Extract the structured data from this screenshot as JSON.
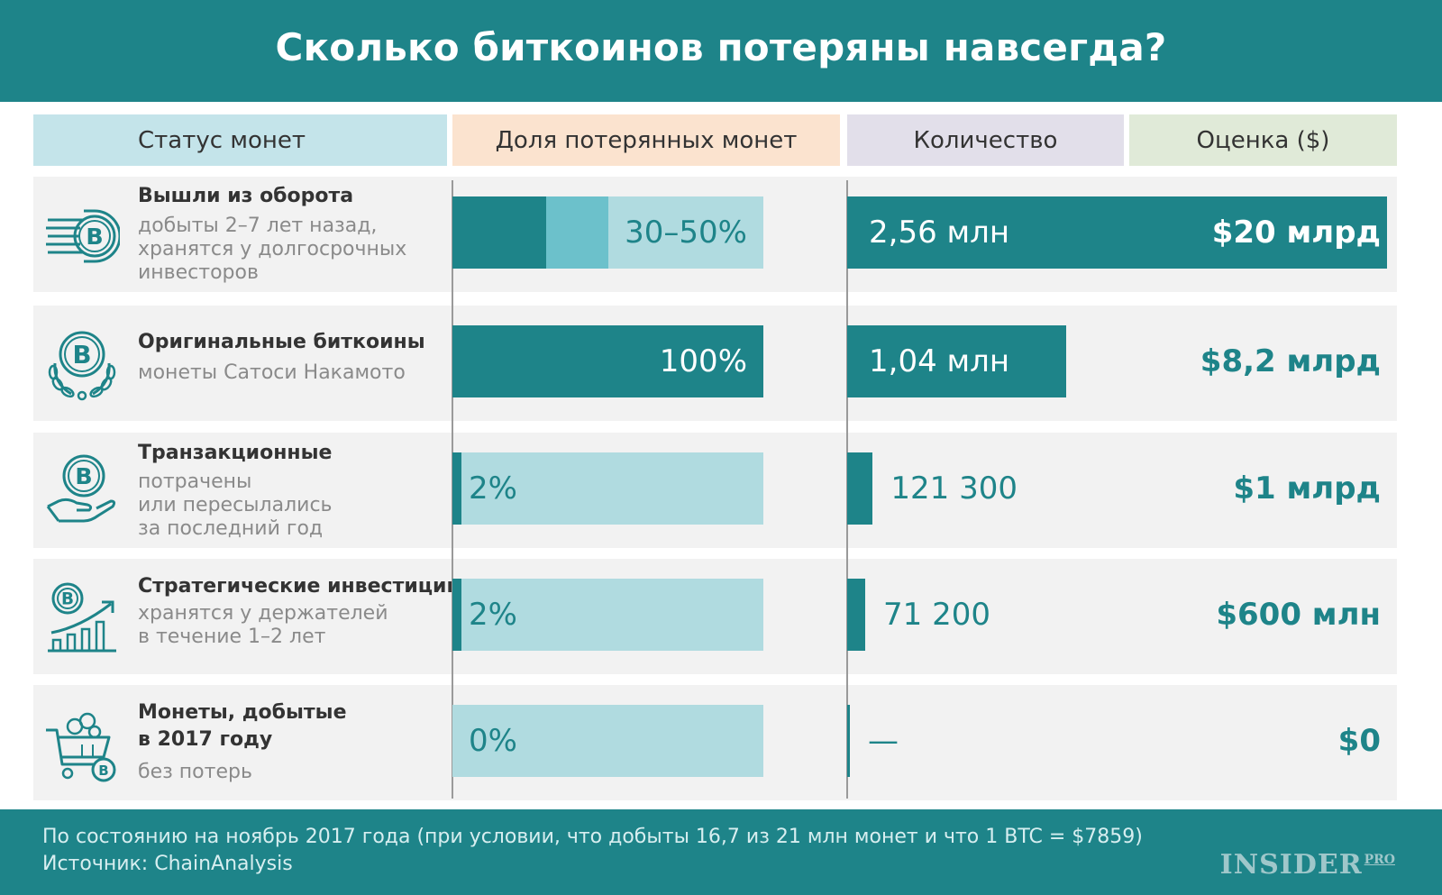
{
  "title": "Сколько биткоинов потеряны навсегда?",
  "columns": {
    "status": "Статус монет",
    "share": "Доля потерянных монет",
    "count": "Количество",
    "value": "Оценка ($)"
  },
  "colors": {
    "teal": "#1e8489",
    "teal_mid": "#6cc1cb",
    "teal_light": "#b0dbe0",
    "row_bg": "#f2f2f2"
  },
  "chart_data": {
    "type": "bar",
    "categories": [
      "Вышли из оборота",
      "Оригинальные биткоины",
      "Транзакционные",
      "Стратегические инвестиции",
      "Монеты, добытые в 2017 году"
    ],
    "rows": [
      {
        "icon": "bitcoin-speed-icon",
        "title": "Вышли из оборота",
        "subtitle": "добыты 2–7 лет назад,\nхранятся у долгосрочных\nинвесторов",
        "share_label": "30–50%",
        "share_low": 30,
        "share_high": 50,
        "count_label": "2,56 млн",
        "count": 2560000,
        "value_label": "$20 млрд"
      },
      {
        "icon": "bitcoin-laurel-icon",
        "title": "Оригинальные биткоины",
        "subtitle": "монеты Сатоси Накамото",
        "share_label": "100%",
        "share_low": 100,
        "share_high": 100,
        "count_label": "1,04 млн",
        "count": 1040000,
        "value_label": "$8,2 млрд"
      },
      {
        "icon": "bitcoin-hand-icon",
        "title": "Транзакционные",
        "subtitle": "потрачены\nили пересылались\nза последний год",
        "share_label": "2%",
        "share_low": 2,
        "share_high": 2,
        "count_label": "121 300",
        "count": 121300,
        "value_label": "$1 млрд"
      },
      {
        "icon": "bitcoin-growth-chart-icon",
        "title": "Стратегические инвестиции",
        "subtitle": "хранятся у держателей\nв течение 1–2 лет",
        "share_label": "2%",
        "share_low": 2,
        "share_high": 2,
        "count_label": "71 200",
        "count": 71200,
        "value_label": "$600 млн"
      },
      {
        "icon": "bitcoin-mining-cart-icon",
        "title": "Монеты, добытые\nв 2017 году",
        "subtitle": "без потерь",
        "share_label": "0%",
        "share_low": 0,
        "share_high": 0,
        "count_label": "—",
        "count": 0,
        "value_label": "$0"
      }
    ]
  },
  "footer": {
    "note": "По состоянию на ноябрь 2017 года (при условии, что добыты 16,7 из 21 млн монет и что 1 BTC = $7859)",
    "source": "Источник: ChainAnalysis",
    "logo": "INSIDER",
    "logo_suffix": "PRO"
  }
}
